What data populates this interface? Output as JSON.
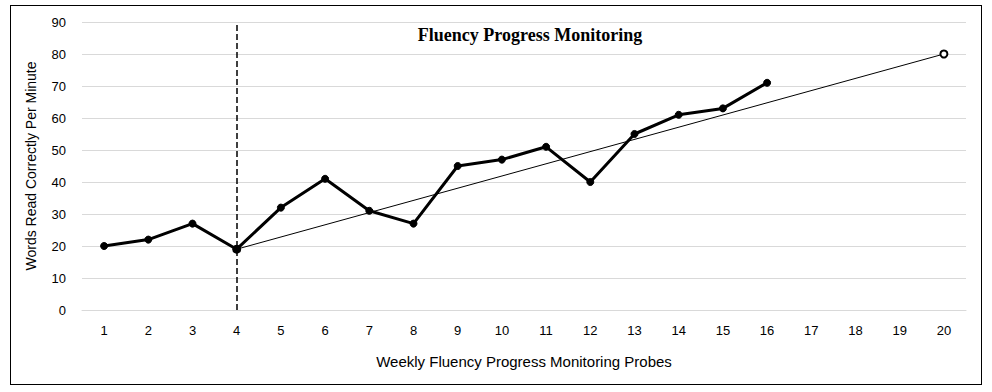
{
  "chart_data": {
    "type": "line",
    "title": "Fluency Progress Monitoring",
    "x_label": "Weekly Fluency Progress Monitoring Probes",
    "y_label": "Words Read Correctly Per Minute",
    "categories": [
      "1",
      "2",
      "3",
      "4",
      "5",
      "6",
      "7",
      "8",
      "9",
      "10",
      "11",
      "12",
      "13",
      "14",
      "15",
      "16",
      "17",
      "18",
      "19",
      "20"
    ],
    "series": [
      {
        "color": "#000000",
        "marker": "circle",
        "line_style": "solid",
        "values": [
          20,
          22,
          27,
          19,
          32,
          41,
          31,
          27,
          45,
          47,
          51,
          40,
          55,
          61,
          63,
          71,
          null,
          null,
          null,
          null
        ]
      },
      {
        "color": "#000000",
        "marker": "open_circle",
        "line_style": "solid",
        "values": [
          null,
          null,
          null,
          19,
          null,
          null,
          null,
          null,
          null,
          null,
          null,
          null,
          null,
          null,
          null,
          null,
          null,
          null,
          null,
          80
        ]
      }
    ],
    "ylim": [
      0,
      90
    ],
    "yticks": [
      0,
      10,
      20,
      30,
      40,
      50,
      60,
      70,
      80,
      90
    ],
    "grid": true,
    "vlines": [
      {
        "x": "4",
        "line_style": "dashed"
      }
    ]
  }
}
